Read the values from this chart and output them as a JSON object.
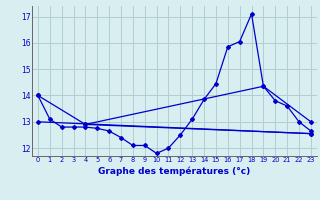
{
  "xlabel": "Graphe des températures (°c)",
  "background_color": "#d8eef0",
  "grid_color": "#b0cdd0",
  "line_color": "#0000cc",
  "xlim": [
    -0.5,
    23.5
  ],
  "ylim": [
    11.7,
    17.4
  ],
  "yticks": [
    12,
    13,
    14,
    15,
    16,
    17
  ],
  "xticks": [
    0,
    1,
    2,
    3,
    4,
    5,
    6,
    7,
    8,
    9,
    10,
    11,
    12,
    13,
    14,
    15,
    16,
    17,
    18,
    19,
    20,
    21,
    22,
    23
  ],
  "series1_x": [
    0,
    1,
    2,
    3,
    4,
    5,
    6,
    7,
    8,
    9,
    10,
    11,
    12,
    13,
    14,
    15,
    16,
    17,
    18,
    19,
    20,
    21,
    22,
    23
  ],
  "series1_y": [
    14.0,
    13.1,
    12.8,
    12.8,
    12.8,
    12.75,
    12.65,
    12.4,
    12.1,
    12.1,
    11.8,
    12.0,
    12.5,
    13.1,
    13.85,
    14.45,
    15.85,
    16.05,
    17.1,
    14.35,
    13.8,
    13.6,
    13.0,
    12.65
  ],
  "series2_x": [
    0,
    4,
    23
  ],
  "series2_y": [
    14.0,
    12.9,
    12.55
  ],
  "series3_x": [
    0,
    23
  ],
  "series3_y": [
    13.0,
    12.55
  ],
  "series4_x": [
    4,
    19,
    23
  ],
  "series4_y": [
    12.9,
    14.35,
    13.0
  ]
}
